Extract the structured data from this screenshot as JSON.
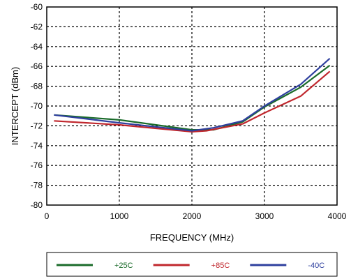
{
  "chart_data": {
    "type": "line",
    "title": "",
    "xlabel": "FREQUENCY (MHz)",
    "ylabel": "INTERCEPT (dBm)",
    "xlim": [
      0,
      4000
    ],
    "ylim": [
      -80,
      -60
    ],
    "xticks": [
      "0",
      "1000",
      "2000",
      "3000",
      "4000"
    ],
    "yticks": [
      "-60",
      "-62",
      "-64",
      "-66",
      "-68",
      "-70",
      "-72",
      "-74",
      "-76",
      "-78",
      "-80"
    ],
    "grid": true,
    "legend_position": "bottom",
    "series": [
      {
        "name": "+25C",
        "color": "#1a6b2a",
        "x": [
          100,
          1000,
          2000,
          2300,
          2700,
          3000,
          3500,
          3900
        ],
        "y": [
          -70.9,
          -71.4,
          -72.4,
          -72.4,
          -71.6,
          -70.1,
          -68.1,
          -65.9
        ]
      },
      {
        "name": "+85C",
        "color": "#c0272d",
        "x": [
          100,
          1000,
          2000,
          2200,
          2700,
          3000,
          3500,
          3900
        ],
        "y": [
          -71.5,
          -71.9,
          -72.6,
          -72.5,
          -71.8,
          -70.7,
          -69.0,
          -66.5
        ]
      },
      {
        "name": "-40C",
        "color": "#2e3f9e",
        "x": [
          100,
          1000,
          2000,
          2300,
          2700,
          3000,
          3500,
          3900
        ],
        "y": [
          -70.9,
          -71.7,
          -72.5,
          -72.2,
          -71.5,
          -70.0,
          -67.8,
          -65.2
        ]
      }
    ]
  }
}
